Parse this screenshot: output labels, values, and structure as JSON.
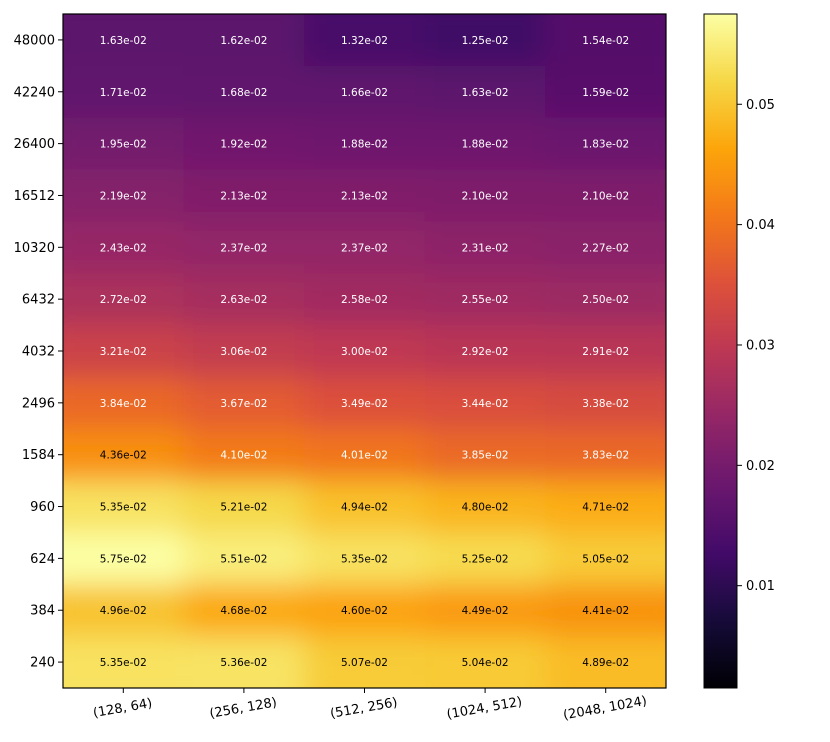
{
  "chart_data": {
    "type": "heatmap",
    "colormap": "inferno",
    "x_categories": [
      "(128, 64)",
      "(256, 128)",
      "(512, 256)",
      "(1024, 512)",
      "(2048, 1024)"
    ],
    "y_categories": [
      "48000",
      "42240",
      "26400",
      "16512",
      "10320",
      "6432",
      "4032",
      "2496",
      "1584",
      "960",
      "624",
      "384",
      "240"
    ],
    "values": [
      [
        0.0163,
        0.0162,
        0.0132,
        0.0125,
        0.0154
      ],
      [
        0.0171,
        0.0168,
        0.0166,
        0.0163,
        0.0159
      ],
      [
        0.0195,
        0.0192,
        0.0188,
        0.0188,
        0.0183
      ],
      [
        0.0219,
        0.0213,
        0.0213,
        0.021,
        0.021
      ],
      [
        0.0243,
        0.0237,
        0.0237,
        0.0231,
        0.0227
      ],
      [
        0.0272,
        0.0263,
        0.0258,
        0.0255,
        0.025
      ],
      [
        0.0321,
        0.0306,
        0.03,
        0.0292,
        0.0291
      ],
      [
        0.0384,
        0.0367,
        0.0349,
        0.0344,
        0.0338
      ],
      [
        0.0436,
        0.041,
        0.0401,
        0.0385,
        0.0383
      ],
      [
        0.0535,
        0.0521,
        0.0494,
        0.048,
        0.0471
      ],
      [
        0.0575,
        0.0551,
        0.0535,
        0.0525,
        0.0505
      ],
      [
        0.0496,
        0.0468,
        0.046,
        0.0449,
        0.0441
      ],
      [
        0.0535,
        0.0536,
        0.0507,
        0.0504,
        0.0489
      ]
    ],
    "labels": [
      [
        "1.63e-02",
        "1.62e-02",
        "1.32e-02",
        "1.25e-02",
        "1.54e-02"
      ],
      [
        "1.71e-02",
        "1.68e-02",
        "1.66e-02",
        "1.63e-02",
        "1.59e-02"
      ],
      [
        "1.95e-02",
        "1.92e-02",
        "1.88e-02",
        "1.88e-02",
        "1.83e-02"
      ],
      [
        "2.19e-02",
        "2.13e-02",
        "2.13e-02",
        "2.10e-02",
        "2.10e-02"
      ],
      [
        "2.43e-02",
        "2.37e-02",
        "2.37e-02",
        "2.31e-02",
        "2.27e-02"
      ],
      [
        "2.72e-02",
        "2.63e-02",
        "2.58e-02",
        "2.55e-02",
        "2.50e-02"
      ],
      [
        "3.21e-02",
        "3.06e-02",
        "3.00e-02",
        "2.92e-02",
        "2.91e-02"
      ],
      [
        "3.84e-02",
        "3.67e-02",
        "3.49e-02",
        "3.44e-02",
        "3.38e-02"
      ],
      [
        "4.36e-02",
        "4.10e-02",
        "4.01e-02",
        "3.85e-02",
        "3.83e-02"
      ],
      [
        "5.35e-02",
        "5.21e-02",
        "4.94e-02",
        "4.80e-02",
        "4.71e-02"
      ],
      [
        "5.75e-02",
        "5.51e-02",
        "5.35e-02",
        "5.25e-02",
        "5.05e-02"
      ],
      [
        "4.96e-02",
        "4.68e-02",
        "4.60e-02",
        "4.49e-02",
        "4.41e-02"
      ],
      [
        "5.35e-02",
        "5.36e-02",
        "5.07e-02",
        "5.04e-02",
        "4.89e-02"
      ]
    ],
    "color_range": [
      0.0015,
      0.0575
    ],
    "colorbar": {
      "ticks": [
        0.01,
        0.02,
        0.03,
        0.04,
        0.05
      ],
      "tick_labels": [
        "0.01",
        "0.02",
        "0.03",
        "0.04",
        "0.05"
      ],
      "placement": "right"
    },
    "text_color_threshold": 0.042,
    "title": "",
    "xlabel": "",
    "ylabel": ""
  }
}
